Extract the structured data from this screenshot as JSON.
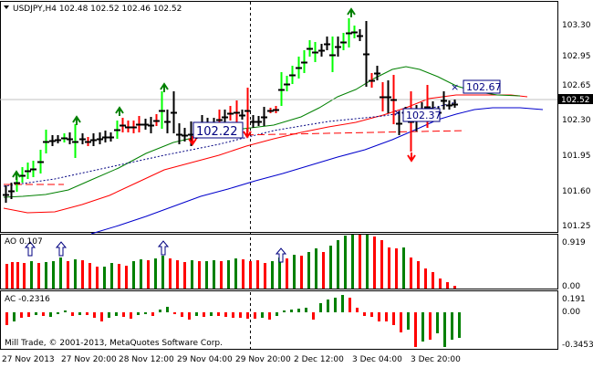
{
  "main": {
    "header": "USDJPY,H4  102.48 102.52 102.46 102.52",
    "ylabels": [
      "103.30",
      "102.95",
      "102.65",
      "102.30",
      "101.95",
      "101.60",
      "101.25"
    ],
    "current_price": "102.52",
    "price_labels": [
      "102.22",
      "102.37",
      "102.67"
    ]
  },
  "ao": {
    "title": "AO 0.107",
    "ylabels": [
      "0.919",
      "0.00"
    ]
  },
  "ac": {
    "title": "AC -0.2316",
    "ylabels": [
      "0.191",
      "0.00",
      "-0.3453"
    ]
  },
  "copyright": "Mill Trade, © 2001-2013, MetaQuotes Software Corp.",
  "xlabels": [
    "27 Nov 2013",
    "27 Nov 20:00",
    "28 Nov 12:00",
    "29 Nov 04:00",
    "29 Nov 20:00",
    "2 Dec 12:00",
    "3 Dec 04:00",
    "3 Dec 20:00"
  ],
  "colors": {
    "up": "#00ff00",
    "down": "#ff0000",
    "neutral": "#000000",
    "ao_up": "#008000",
    "ao_down": "#ff0000",
    "ma_green": "#008000",
    "ma_red": "#ff0000",
    "ma_blue": "#0000cc"
  }
}
